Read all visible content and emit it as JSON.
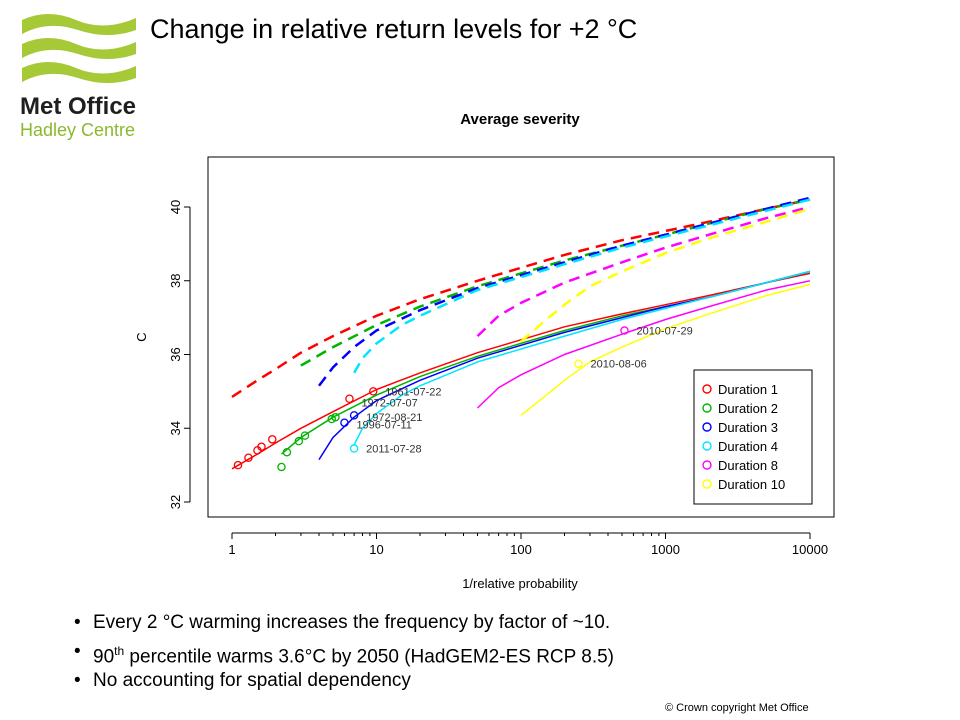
{
  "slide": {
    "title": "Change in relative return levels for +2 °C",
    "logo_text": [
      "Met Office",
      "Hadley Centre"
    ],
    "bullets": [
      {
        "pre": "Every 2 °C warming increases the frequency by factor of ~10.",
        "sup": "",
        "post": ""
      },
      {
        "pre": "90",
        "sup": "th",
        "post": " percentile warms 3.6°C by 2050 (HadGEM2-ES RCP 8.5)"
      },
      {
        "pre": "No accounting for spatial dependency",
        "sup": "",
        "post": ""
      }
    ],
    "copyright": "© Crown  copyright   Met Office",
    "colors": {
      "logo_green": "#a6c937",
      "logo_text": "#1f1f1f",
      "logo_subtext": "#8cb82e"
    }
  },
  "chart_data": {
    "type": "line",
    "title": "Average severity",
    "xlabel": "1/relative probability",
    "ylabel": "C",
    "x_scale": "log",
    "xlim": [
      1,
      10000
    ],
    "ylim": [
      32,
      41
    ],
    "x_ticks": [
      1,
      10,
      100,
      1000,
      10000
    ],
    "x_tick_labels": [
      "1",
      "10",
      "100",
      "1000",
      "10000"
    ],
    "y_ticks": [
      32,
      34,
      36,
      38,
      40
    ],
    "y_tick_labels": [
      "32",
      "34",
      "36",
      "38",
      "40"
    ],
    "grid": false,
    "legend_position": "bottom-right",
    "series": [
      {
        "name": "Duration 1",
        "color": "#ff0000",
        "solid": {
          "x": [
            1,
            1.5,
            2,
            3,
            5,
            10,
            20,
            50,
            100,
            200,
            500,
            1000,
            2000,
            5000,
            10000
          ],
          "y": [
            32.9,
            33.3,
            33.6,
            34.0,
            34.45,
            35.05,
            35.5,
            36.05,
            36.4,
            36.75,
            37.1,
            37.35,
            37.6,
            37.95,
            38.2
          ]
        },
        "dashed": {
          "x": [
            1,
            1.5,
            2,
            3,
            5,
            10,
            20,
            50,
            100,
            200,
            500,
            1000,
            2000,
            5000,
            10000
          ],
          "y": [
            34.85,
            35.3,
            35.6,
            36.05,
            36.5,
            37.05,
            37.5,
            38.0,
            38.35,
            38.7,
            39.1,
            39.35,
            39.6,
            39.95,
            40.2
          ]
        },
        "points": {
          "x": [
            1.1,
            1.3,
            1.5,
            1.6,
            1.9,
            6.5,
            9.5
          ],
          "y": [
            33.0,
            33.2,
            33.4,
            33.5,
            33.7,
            34.8,
            35.0
          ]
        }
      },
      {
        "name": "Duration 2",
        "color": "#00b400",
        "solid": {
          "x": [
            2.2,
            3,
            5,
            10,
            20,
            50,
            100,
            200,
            500,
            1000,
            2000,
            5000,
            10000
          ],
          "y": [
            33.3,
            33.75,
            34.3,
            34.9,
            35.4,
            35.95,
            36.3,
            36.65,
            37.05,
            37.3,
            37.55,
            37.95,
            38.25
          ]
        },
        "dashed": {
          "x": [
            3,
            5,
            10,
            20,
            50,
            100,
            200,
            500,
            1000,
            2000,
            5000,
            10000
          ],
          "y": [
            35.7,
            36.2,
            36.8,
            37.3,
            37.85,
            38.2,
            38.55,
            38.95,
            39.25,
            39.55,
            39.95,
            40.2
          ]
        },
        "points": {
          "x": [
            2.2,
            2.4,
            2.9,
            3.2,
            4.9,
            5.2
          ],
          "y": [
            32.95,
            33.35,
            33.65,
            33.8,
            34.25,
            34.3
          ]
        }
      },
      {
        "name": "Duration 3",
        "color": "#0000ff",
        "solid": {
          "x": [
            4,
            5,
            7,
            10,
            20,
            50,
            100,
            200,
            500,
            1000,
            2000,
            5000,
            10000
          ],
          "y": [
            33.15,
            33.75,
            34.3,
            34.75,
            35.3,
            35.9,
            36.25,
            36.6,
            37.0,
            37.3,
            37.55,
            37.95,
            38.25
          ]
        },
        "dashed": {
          "x": [
            4,
            5,
            7,
            10,
            20,
            50,
            100,
            200,
            500,
            1000,
            2000,
            5000,
            10000
          ],
          "y": [
            35.15,
            35.65,
            36.2,
            36.65,
            37.2,
            37.8,
            38.15,
            38.5,
            38.95,
            39.25,
            39.55,
            39.95,
            40.25
          ]
        },
        "points": {
          "x": [
            6,
            7
          ],
          "y": [
            34.15,
            34.35
          ]
        }
      },
      {
        "name": "Duration 4",
        "color": "#00e5ff",
        "solid": {
          "x": [
            7,
            8,
            10,
            15,
            20,
            50,
            100,
            200,
            500,
            1000,
            2000,
            5000,
            10000
          ],
          "y": [
            33.55,
            34.0,
            34.4,
            34.9,
            35.15,
            35.8,
            36.15,
            36.5,
            36.95,
            37.25,
            37.55,
            37.95,
            38.25
          ]
        },
        "dashed": {
          "x": [
            7,
            8,
            10,
            15,
            20,
            50,
            100,
            200,
            500,
            1000,
            2000,
            5000,
            10000
          ],
          "y": [
            35.5,
            35.9,
            36.3,
            36.8,
            37.05,
            37.75,
            38.1,
            38.45,
            38.9,
            39.2,
            39.5,
            39.9,
            40.2
          ]
        },
        "points": {
          "x": [
            7
          ],
          "y": [
            33.45
          ]
        }
      },
      {
        "name": "Duration 8",
        "color": "#ff00ff",
        "solid": {
          "x": [
            50,
            70,
            100,
            200,
            500,
            1000,
            2000,
            5000,
            10000
          ],
          "y": [
            34.55,
            35.1,
            35.45,
            36.0,
            36.55,
            36.95,
            37.3,
            37.75,
            38.0
          ]
        },
        "dashed": {
          "x": [
            50,
            70,
            100,
            200,
            500,
            1000,
            2000,
            5000,
            10000
          ],
          "y": [
            36.5,
            37.05,
            37.4,
            37.95,
            38.5,
            38.9,
            39.25,
            39.7,
            40.0
          ]
        },
        "points": {
          "x": [
            520
          ],
          "y": [
            36.65
          ]
        }
      },
      {
        "name": "Duration 10",
        "color": "#ffff00",
        "solid": {
          "x": [
            100,
            150,
            200,
            300,
            500,
            1000,
            2000,
            5000,
            10000
          ],
          "y": [
            34.35,
            34.9,
            35.3,
            35.8,
            36.2,
            36.7,
            37.1,
            37.6,
            37.9
          ]
        },
        "dashed": {
          "x": [
            100,
            150,
            200,
            300,
            500,
            1000,
            2000,
            5000,
            10000
          ],
          "y": [
            36.35,
            36.95,
            37.35,
            37.85,
            38.25,
            38.75,
            39.15,
            39.6,
            39.95
          ]
        },
        "points": {
          "x": [
            250
          ],
          "y": [
            35.75
          ]
        }
      }
    ],
    "annotations": [
      {
        "text": "1961-07-22",
        "x": 9.5,
        "y": 35.0
      },
      {
        "text": "1972-07-07",
        "x": 6.5,
        "y": 34.7
      },
      {
        "text": "1972-08-21",
        "x": 7,
        "y": 34.3
      },
      {
        "text": "1996-07-11",
        "x": 6,
        "y": 34.1
      },
      {
        "text": "2011-07-28",
        "x": 7,
        "y": 33.45
      },
      {
        "text": "2010-07-29",
        "x": 520,
        "y": 36.65
      },
      {
        "text": "2010-08-06",
        "x": 250,
        "y": 35.75
      }
    ]
  }
}
